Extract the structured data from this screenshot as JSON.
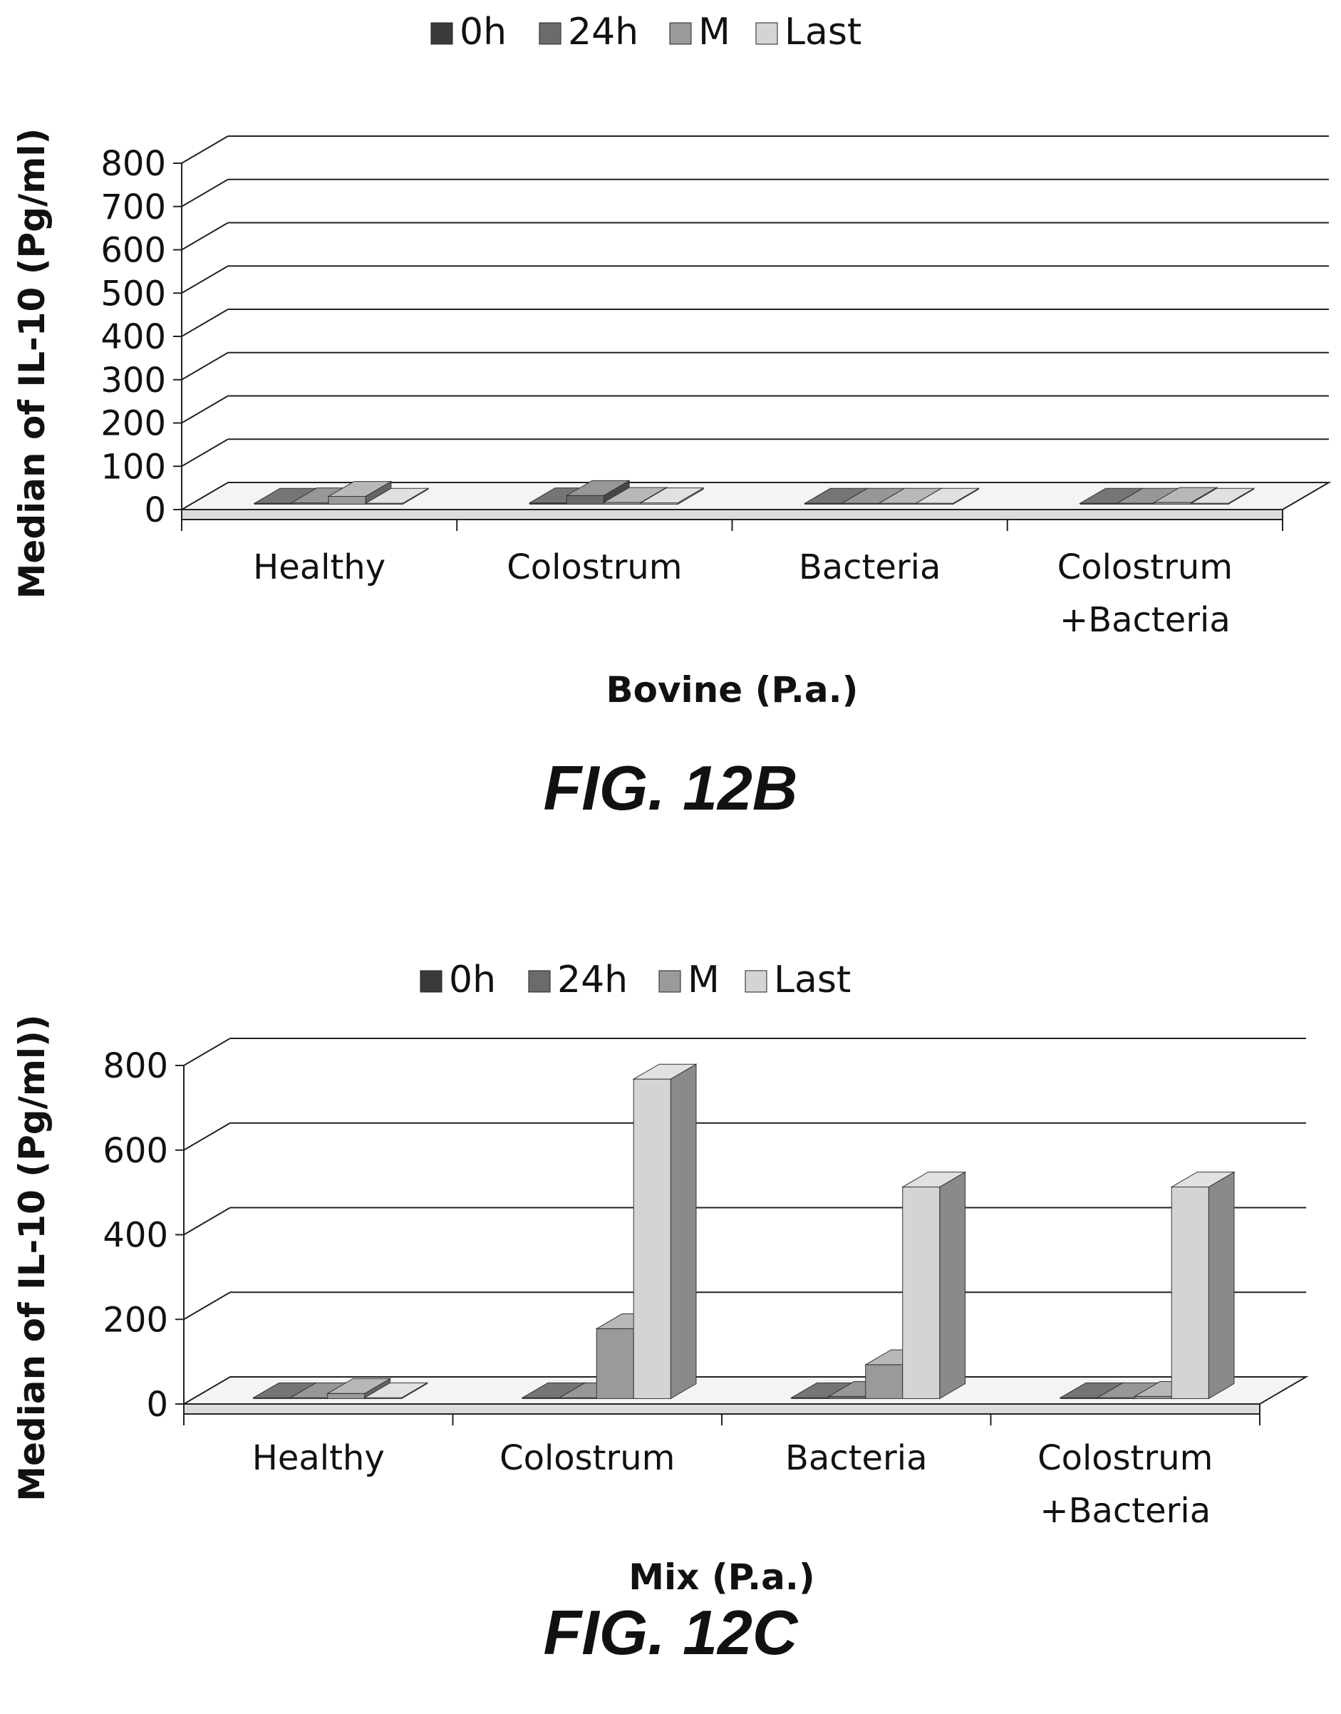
{
  "figures": [
    {
      "caption": "FIG. 12B",
      "chart_data": {
        "type": "bar",
        "title": "",
        "xlabel": "Bovine (P.a.)",
        "ylabel": "Median of IL-10 (Pg/ml)",
        "ylim": [
          0,
          800
        ],
        "yticks": [
          "0",
          "100",
          "200",
          "300",
          "400",
          "500",
          "600",
          "700",
          "800"
        ],
        "categories": [
          [
            "Healthy"
          ],
          [
            "Colostrum"
          ],
          [
            "Bacteria"
          ],
          [
            "Colostrum",
            "+Bacteria"
          ]
        ],
        "series": [
          {
            "name": "0h",
            "values": [
              2,
              3,
              2,
              2
            ]
          },
          {
            "name": "24h",
            "values": [
              3,
              20,
              2,
              2
            ]
          },
          {
            "name": "M",
            "values": [
              18,
              4,
              2,
              4
            ]
          },
          {
            "name": "Last",
            "values": [
              2,
              3,
              2,
              2
            ]
          }
        ],
        "legend_position": "top",
        "grid": true,
        "colors": {
          "0h": "#3a3a3a",
          "24h": "#6b6b6b",
          "M": "#9a9a9a",
          "Last": "#d4d4d4"
        }
      }
    },
    {
      "caption": "FIG. 12C",
      "chart_data": {
        "type": "bar",
        "title": "",
        "xlabel": "Mix (P.a.)",
        "ylabel": "Median of IL-10 (Pg/ml))",
        "ylim": [
          0,
          800
        ],
        "yticks": [
          "0",
          "200",
          "400",
          "600",
          "800"
        ],
        "categories": [
          [
            "Healthy"
          ],
          [
            "Colostrum"
          ],
          [
            "Bacteria"
          ],
          [
            "Colostrum",
            "+Bacteria"
          ]
        ],
        "series": [
          {
            "name": "0h",
            "values": [
              2,
              2,
              2,
              2
            ]
          },
          {
            "name": "24h",
            "values": [
              2,
              2,
              5,
              2
            ]
          },
          {
            "name": "M",
            "values": [
              12,
              165,
              80,
              5
            ]
          },
          {
            "name": "Last",
            "values": [
              2,
              755,
              500,
              500
            ]
          }
        ],
        "legend_position": "top",
        "grid": true,
        "colors": {
          "0h": "#3a3a3a",
          "24h": "#6b6b6b",
          "M": "#9a9a9a",
          "Last": "#d4d4d4"
        }
      }
    }
  ]
}
